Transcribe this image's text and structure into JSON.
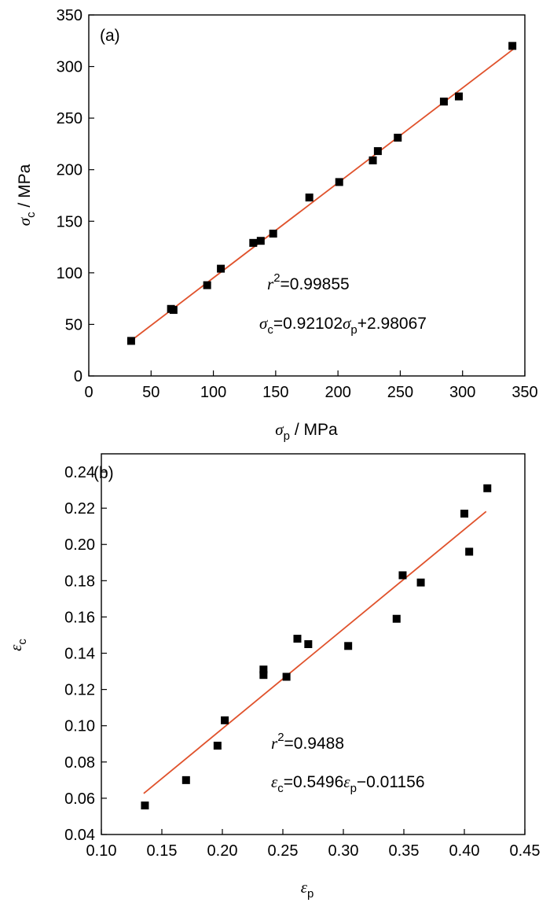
{
  "chart_data": [
    {
      "type": "scatter",
      "panel_label": "(a)",
      "xlabel": {
        "symbol": "σ",
        "sub": "p",
        "unit": " / MPa"
      },
      "ylabel": {
        "symbol": "σ",
        "sub": "c",
        "unit": " / MPa"
      },
      "xlim": [
        0,
        350
      ],
      "ylim": [
        0,
        350
      ],
      "xticks": [
        0,
        50,
        100,
        150,
        200,
        250,
        300,
        350
      ],
      "yticks": [
        0,
        50,
        100,
        150,
        200,
        250,
        300,
        350
      ],
      "grid": false,
      "marker_color": "#000000",
      "fit_color": "#e0522c",
      "points": [
        {
          "x": 34,
          "y": 34
        },
        {
          "x": 66,
          "y": 65
        },
        {
          "x": 68,
          "y": 64
        },
        {
          "x": 95,
          "y": 88
        },
        {
          "x": 106,
          "y": 104
        },
        {
          "x": 132,
          "y": 129
        },
        {
          "x": 138,
          "y": 131
        },
        {
          "x": 148,
          "y": 138
        },
        {
          "x": 177,
          "y": 173
        },
        {
          "x": 201,
          "y": 188
        },
        {
          "x": 228,
          "y": 209
        },
        {
          "x": 232,
          "y": 218
        },
        {
          "x": 248,
          "y": 231
        },
        {
          "x": 285,
          "y": 266
        },
        {
          "x": 297,
          "y": 271
        },
        {
          "x": 340,
          "y": 320
        }
      ],
      "fit": {
        "slope": 0.92102,
        "intercept": 2.98067,
        "x_range": [
          33,
          341
        ]
      },
      "annotations": {
        "r2": {
          "symbol": "r",
          "sup": "2",
          "value": "=0.99855"
        },
        "equation": {
          "lhs_symbol": "σ",
          "lhs_sub": "c",
          "coef": "=0.92102",
          "rhs_symbol": "σ",
          "rhs_sub": "p",
          "const": "+2.98067"
        }
      }
    },
    {
      "type": "scatter",
      "panel_label": "(b)",
      "xlabel": {
        "symbol": "ε",
        "sub": "p",
        "unit": ""
      },
      "ylabel": {
        "symbol": "ε",
        "sub": "c",
        "unit": ""
      },
      "xlim": [
        0.1,
        0.45
      ],
      "ylim": [
        0.04,
        0.25
      ],
      "xticks": [
        "0.10",
        "0.15",
        "0.20",
        "0.25",
        "0.30",
        "0.35",
        "0.40",
        "0.45"
      ],
      "yticks": [
        "0.04",
        "0.06",
        "0.08",
        "0.10",
        "0.12",
        "0.14",
        "0.16",
        "0.18",
        "0.20",
        "0.22",
        "0.24"
      ],
      "grid": false,
      "marker_color": "#000000",
      "fit_color": "#e0522c",
      "points": [
        {
          "x": 0.136,
          "y": 0.056
        },
        {
          "x": 0.17,
          "y": 0.07
        },
        {
          "x": 0.196,
          "y": 0.089
        },
        {
          "x": 0.202,
          "y": 0.103
        },
        {
          "x": 0.234,
          "y": 0.128
        },
        {
          "x": 0.234,
          "y": 0.131
        },
        {
          "x": 0.253,
          "y": 0.127
        },
        {
          "x": 0.262,
          "y": 0.148
        },
        {
          "x": 0.271,
          "y": 0.145
        },
        {
          "x": 0.304,
          "y": 0.144
        },
        {
          "x": 0.344,
          "y": 0.159
        },
        {
          "x": 0.349,
          "y": 0.183
        },
        {
          "x": 0.364,
          "y": 0.179
        },
        {
          "x": 0.4,
          "y": 0.217
        },
        {
          "x": 0.404,
          "y": 0.196
        },
        {
          "x": 0.419,
          "y": 0.231
        }
      ],
      "fit": {
        "slope": 0.5496,
        "intercept": -0.01156,
        "x_range": [
          0.135,
          0.418
        ]
      },
      "annotations": {
        "r2": {
          "symbol": "r",
          "sup": "2",
          "value": "=0.9488"
        },
        "equation": {
          "lhs_symbol": "ε",
          "lhs_sub": "c",
          "coef": "=0.5496",
          "rhs_symbol": "ε",
          "rhs_sub": "p",
          "const": "−0.01156"
        }
      }
    }
  ]
}
